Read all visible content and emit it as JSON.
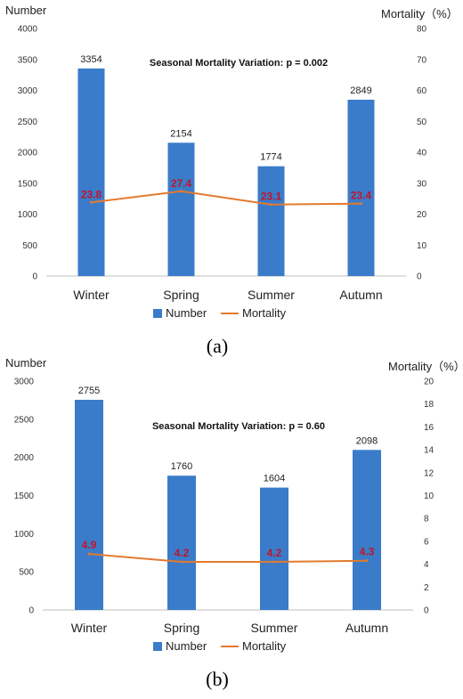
{
  "colors": {
    "bar": "#3a7cc9",
    "line": "#e37a2f",
    "mortality_label": "#c0152c",
    "axis": "#bfbfbf"
  },
  "chart_data": [
    {
      "type": "bar",
      "panel": "(a)",
      "annotation": "Seasonal Mortality Variation: p = 0.002",
      "ylabel_left": "Number",
      "ylabel_right": "Mortality（%）",
      "categories": [
        "Winter",
        "Spring",
        "Summer",
        "Autumn"
      ],
      "series": [
        {
          "name": "Number",
          "kind": "bar",
          "axis": "left",
          "values": [
            3354,
            2154,
            1774,
            2849
          ]
        },
        {
          "name": "Mortality",
          "kind": "line",
          "axis": "right",
          "values": [
            23.8,
            27.4,
            23.1,
            23.4
          ]
        }
      ],
      "ylim_left": [
        0,
        4000
      ],
      "yticks_left": [
        0,
        500,
        1000,
        1500,
        2000,
        2500,
        3000,
        3500,
        4000
      ],
      "ylim_right": [
        0,
        80
      ],
      "yticks_right": [
        0,
        10,
        20,
        30,
        40,
        50,
        60,
        70,
        80
      ],
      "legend": "bottom",
      "grid": false
    },
    {
      "type": "bar",
      "panel": "(b)",
      "annotation": "Seasonal Mortality Variation: p = 0.60",
      "ylabel_left": "Number",
      "ylabel_right": "Mortality（%）",
      "categories": [
        "Winter",
        "Spring",
        "Summer",
        "Autumn"
      ],
      "series": [
        {
          "name": "Number",
          "kind": "bar",
          "axis": "left",
          "values": [
            2755,
            1760,
            1604,
            2098
          ]
        },
        {
          "name": "Mortality",
          "kind": "line",
          "axis": "right",
          "values": [
            4.9,
            4.2,
            4.2,
            4.3
          ]
        }
      ],
      "ylim_left": [
        0,
        3000
      ],
      "yticks_left": [
        0,
        500,
        1000,
        1500,
        2000,
        2500,
        3000
      ],
      "ylim_right": [
        0,
        20
      ],
      "yticks_right": [
        0,
        2,
        4,
        6,
        8,
        10,
        12,
        14,
        16,
        18,
        20
      ],
      "legend": "bottom",
      "grid": false
    }
  ]
}
